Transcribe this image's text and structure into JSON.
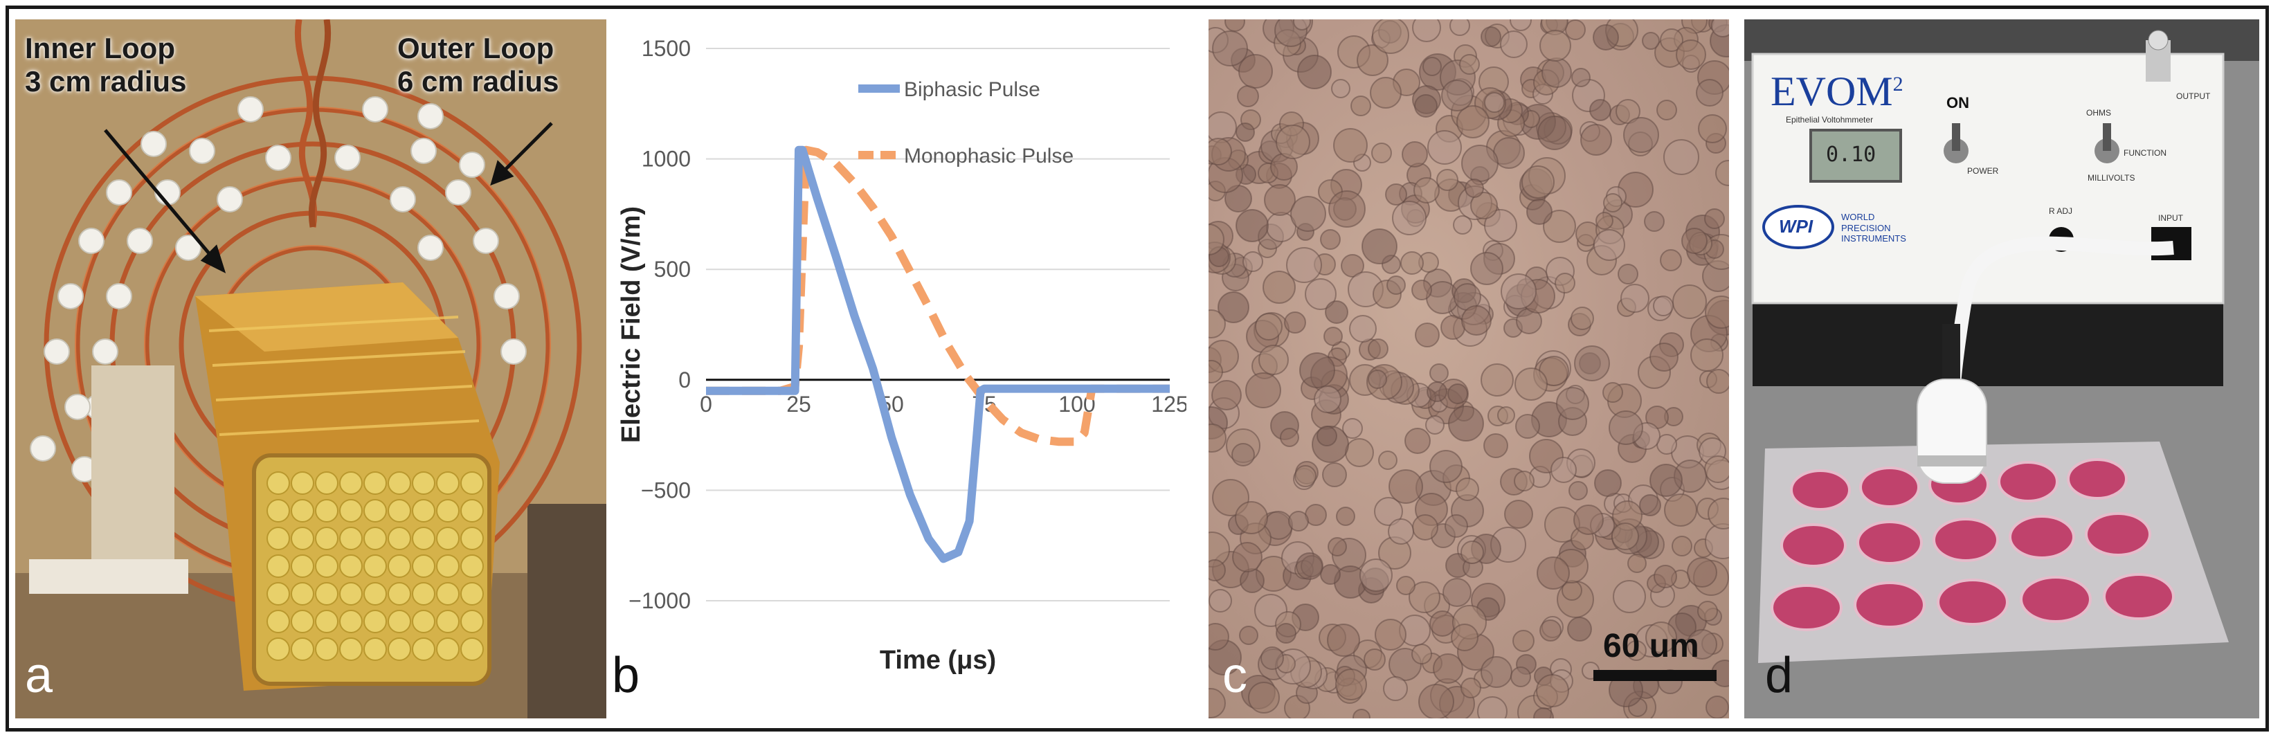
{
  "panels": {
    "a": {
      "letter": "a",
      "inner_loop_line1": "Inner Loop",
      "inner_loop_line2": "3 cm radius",
      "outer_loop_line1": "Outer Loop",
      "outer_loop_line2": "6 cm radius"
    },
    "b": {
      "letter": "b"
    },
    "c": {
      "letter": "c",
      "scale_label": "60 um"
    },
    "d": {
      "letter": "d",
      "device_brand": "EVOM",
      "device_brand_sup": "2",
      "device_subtitle": "Epithelial Voltohmmeter",
      "switch_on_label": "ON",
      "power_label": "POWER",
      "function_label": "FUNCTION",
      "ohms_label": "OHMS",
      "millivolts_label": "MILLIVOLTS",
      "adj_label": "R ADJ",
      "output_label": "OUTPUT",
      "input_label": "INPUT",
      "maker_logo": "WPI",
      "maker_name_line1": "WORLD",
      "maker_name_line2": "PRECISION",
      "maker_name_line3": "INSTRUMENTS",
      "display_reading": "0.10"
    }
  },
  "chart_data": {
    "type": "line",
    "xlabel": "Time (μs)",
    "ylabel": "Electric Field (V/m)",
    "xlim": [
      0,
      125
    ],
    "ylim": [
      -1000,
      1500
    ],
    "xticks": [
      "0",
      "25",
      "50",
      "75",
      "100",
      "125"
    ],
    "yticks": [
      "1500",
      "1000",
      "500",
      "0",
      "−500",
      "−1000"
    ],
    "grid": "horizontal",
    "legend_position": "top-right",
    "series": [
      {
        "name": "Biphasic Pulse",
        "color": "#7da0d8",
        "style": "solid",
        "x": [
          0,
          24,
          25,
          26,
          30,
          35,
          40,
          45,
          50,
          55,
          60,
          64,
          68,
          71,
          73,
          74,
          75,
          76,
          80,
          90,
          100,
          110,
          125
        ],
        "y": [
          -50,
          -50,
          1040,
          1040,
          820,
          560,
          290,
          50,
          -260,
          -520,
          -720,
          -810,
          -780,
          -640,
          -250,
          -50,
          -40,
          -40,
          -40,
          -40,
          -40,
          -40,
          -40
        ]
      },
      {
        "name": "Monophasic Pulse",
        "color": "#f4a26a",
        "style": "dashed",
        "x": [
          0,
          20,
          24,
          25,
          27,
          30,
          35,
          40,
          45,
          50,
          55,
          60,
          65,
          70,
          75,
          80,
          85,
          90,
          95,
          100,
          102,
          104,
          106,
          110,
          125
        ],
        "y": [
          -50,
          -50,
          -30,
          150,
          1040,
          1030,
          980,
          890,
          780,
          650,
          490,
          330,
          160,
          20,
          -90,
          -180,
          -240,
          -270,
          -280,
          -280,
          -240,
          -40,
          -40,
          -40,
          -40
        ]
      }
    ]
  }
}
